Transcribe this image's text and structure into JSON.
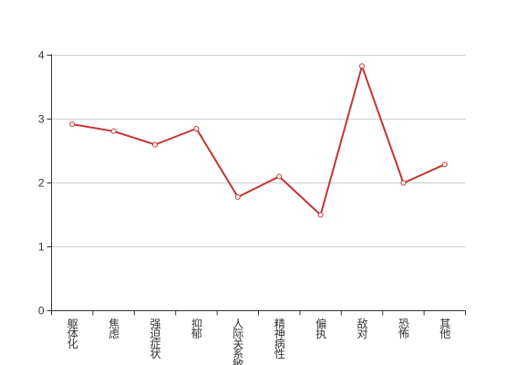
{
  "chart_data": {
    "type": "line",
    "categories": [
      "躯体化",
      "焦虑",
      "强迫症状",
      "抑郁",
      "人际关系敏感",
      "精神病性",
      "偏执",
      "敌对",
      "恐怖",
      "其他"
    ],
    "values": [
      2.92,
      2.81,
      2.6,
      2.85,
      1.78,
      2.1,
      1.5,
      3.83,
      2.0,
      2.29
    ],
    "color": "#c23531",
    "ylim": [
      0,
      4
    ],
    "yticks": [
      0,
      1,
      2,
      3,
      4
    ],
    "grid": true
  }
}
